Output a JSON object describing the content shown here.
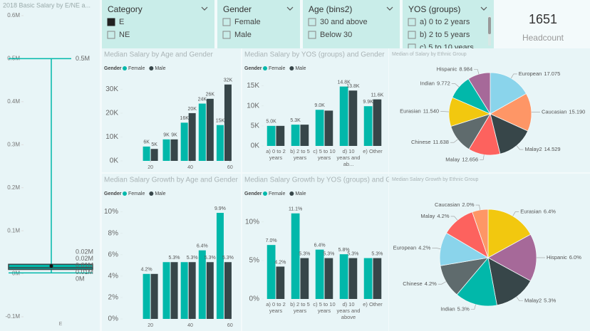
{
  "box_panel": {
    "title": "2018 Basic Salary by E/NE a...",
    "category": "E",
    "ylim": [
      -100000,
      600000
    ],
    "yticks": [
      {
        "value": -100000,
        "label": "-0.1M"
      },
      {
        "value": 0,
        "label": "0M"
      },
      {
        "value": 100000,
        "label": "0.1M"
      },
      {
        "value": 200000,
        "label": "0.2M"
      },
      {
        "value": 300000,
        "label": "0.3M"
      },
      {
        "value": 400000,
        "label": "0.4M"
      },
      {
        "value": 500000,
        "label": "0.5M"
      },
      {
        "value": 600000,
        "label": "0.6M"
      }
    ],
    "values": {
      "max": 500000,
      "q3": 22000,
      "mean": 18000,
      "median": 14000,
      "q1": 10000,
      "min": 2000
    },
    "value_labels": {
      "max": "0.5M",
      "q3": "0.02M",
      "mean": "0.02M",
      "median": "0.01M",
      "q1": "0.01M",
      "min": "0M"
    },
    "color": "#01B8AA"
  },
  "slicers": [
    {
      "title": "Category",
      "items": [
        "E",
        "NE"
      ],
      "selected": [
        0
      ]
    },
    {
      "title": "Gender",
      "items": [
        "Female",
        "Male"
      ],
      "selected": []
    },
    {
      "title": "Age (bins2)",
      "items": [
        "30 and above",
        "Below 30"
      ],
      "selected": []
    },
    {
      "title": "YOS (groups)",
      "items": [
        "a) 0 to 2 years",
        "b) 2 to 5 years",
        "c) 5 to 10 years"
      ],
      "selected": []
    }
  ],
  "card": {
    "value": 1651,
    "label": "Headcount"
  },
  "charts": [
    {
      "type": "bar",
      "title": "Median Salary by Age and Gender",
      "legend_title": "Gender",
      "x": [
        20,
        30,
        39,
        48,
        57
      ],
      "xlim": [
        6,
        64
      ],
      "xticks": [
        20,
        40,
        60
      ],
      "ylim": [
        0,
        34000
      ],
      "yticks": [
        {
          "value": 0,
          "label": "0K"
        },
        {
          "value": 10000,
          "label": "10K"
        },
        {
          "value": 20000,
          "label": "20K"
        },
        {
          "value": 30000,
          "label": "30K"
        }
      ],
      "series": [
        {
          "name": "Female",
          "color": "#01B8AA",
          "values": [
            6000,
            9000,
            16000,
            24000,
            15000
          ],
          "value_labels": [
            "6K",
            "9K",
            "16K",
            "24K",
            "15K"
          ]
        },
        {
          "name": "Male",
          "color": "#374649",
          "values": [
            5000,
            9000,
            20000,
            26000,
            32000
          ],
          "value_labels": [
            "5K",
            "9K",
            "20K",
            "26K",
            "32K"
          ]
        }
      ]
    },
    {
      "type": "bar",
      "title": "Median Salary by YOS (groups) and Gender",
      "legend_title": "Gender",
      "categories": [
        "a) 0 to 2 years",
        "b) 2 to 5 years",
        "c) 5 to 10 years",
        "d) 10 years and ab...",
        "e) Other"
      ],
      "ylim": [
        0,
        16500
      ],
      "yticks": [
        {
          "value": 0,
          "label": "0K"
        },
        {
          "value": 5000,
          "label": "5K"
        },
        {
          "value": 10000,
          "label": "10K"
        },
        {
          "value": 15000,
          "label": "15K"
        }
      ],
      "series": [
        {
          "name": "Female",
          "color": "#01B8AA",
          "values": [
            5000,
            5300,
            9000,
            14800,
            9900
          ],
          "value_labels": [
            "5.0K",
            "5.3K",
            "9.0K",
            "14.8K",
            "9.9K"
          ]
        },
        {
          "name": "Male",
          "color": "#374649",
          "values": [
            5000,
            5300,
            8800,
            13800,
            11600
          ],
          "value_labels": [
            null,
            null,
            null,
            "13.8K",
            "11.6K"
          ]
        }
      ]
    },
    {
      "type": "pie",
      "title": "Median of Salary by Ethnic Group",
      "categories": [
        "European",
        "Caucasian",
        "Malay2",
        "Malay",
        "Chinese",
        "Eurasian",
        "Indian",
        "Hispanic"
      ],
      "values": [
        17.075,
        15.19,
        14.529,
        12.656,
        11.638,
        11.54,
        9.772,
        8.984
      ],
      "value_labels": [
        "17.075",
        "15.190",
        "14.529",
        "12.656",
        "11.638",
        "11.540",
        "9.772",
        "8.984"
      ],
      "colors": [
        "#8AD4EB",
        "#FE9666",
        "#374649",
        "#FD625E",
        "#5F6B6D",
        "#F2C80F",
        "#01B8AA",
        "#A66999"
      ]
    },
    {
      "type": "bar",
      "title": "Median Salary Growth by Age and Gender",
      "legend_title": "Gender",
      "x": [
        20,
        30,
        39,
        48,
        57
      ],
      "xlim": [
        6,
        64
      ],
      "xticks": [
        20,
        40,
        60
      ],
      "ylim": [
        0,
        10.5
      ],
      "yticks": [
        {
          "value": 0,
          "label": "0%"
        },
        {
          "value": 2,
          "label": "2%"
        },
        {
          "value": 4,
          "label": "4%"
        },
        {
          "value": 6,
          "label": "6%"
        },
        {
          "value": 8,
          "label": "8%"
        },
        {
          "value": 10,
          "label": "10%"
        }
      ],
      "series": [
        {
          "name": "Female",
          "color": "#01B8AA",
          "values": [
            4.2,
            5.3,
            5.3,
            6.4,
            9.9
          ],
          "value_labels": [
            "4.2%",
            null,
            null,
            "6.4%",
            "9.9%"
          ]
        },
        {
          "name": "Male",
          "color": "#374649",
          "values": [
            4.2,
            5.3,
            5.3,
            5.3,
            5.3
          ],
          "value_labels": [
            null,
            "5.3%",
            "5.3%",
            "5.3%",
            "5.3%"
          ]
        }
      ]
    },
    {
      "type": "bar",
      "title": "Median Salary Growth by YOS (groups) and Gender",
      "legend_title": "Gender",
      "categories": [
        "a) 0 to 2 years",
        "b) 2 to 5 years",
        "c) 5 to 10 years",
        "d) 10 years and above",
        "e) Other"
      ],
      "ylim": [
        0,
        12
      ],
      "yticks": [
        {
          "value": 0,
          "label": "0%"
        },
        {
          "value": 5,
          "label": "5%"
        },
        {
          "value": 10,
          "label": "10%"
        }
      ],
      "series": [
        {
          "name": "Female",
          "color": "#01B8AA",
          "values": [
            7.0,
            11.1,
            6.4,
            5.8,
            5.3
          ],
          "value_labels": [
            "7.0%",
            "11.1%",
            "6.4%",
            "5.8%",
            null
          ]
        },
        {
          "name": "Male",
          "color": "#374649",
          "values": [
            4.2,
            5.3,
            5.3,
            5.3,
            5.3
          ],
          "value_labels": [
            "4.2%",
            "5.3%",
            "5.3%",
            "5.3%",
            "5.3%"
          ]
        }
      ]
    },
    {
      "type": "pie",
      "title": "Median Salary Growth by Ethnic Group",
      "categories": [
        "Eurasian",
        "Hispanic",
        "Malay2",
        "Indian",
        "Chinese",
        "European",
        "Malay",
        "Caucasian"
      ],
      "values": [
        6.4,
        6.0,
        5.3,
        5.3,
        4.2,
        4.2,
        4.2,
        2.0
      ],
      "value_labels": [
        "6.4%",
        "6.0%",
        "5.3%",
        "5.3%",
        "4.2%",
        "4.2%",
        "4.2%",
        "2.0%"
      ],
      "colors": [
        "#F2C80F",
        "#A66999",
        "#374649",
        "#01B8AA",
        "#5F6B6D",
        "#8AD4EB",
        "#FD625E",
        "#FE9666"
      ]
    }
  ]
}
